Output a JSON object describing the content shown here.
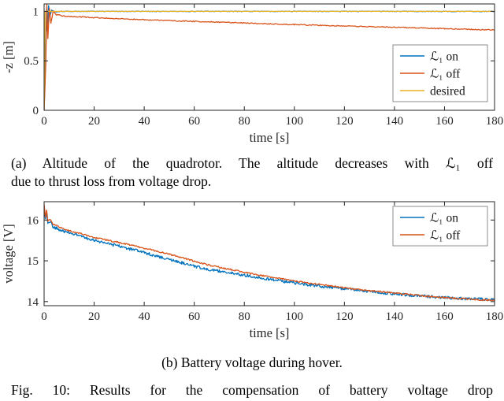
{
  "figure": {
    "caption_a_line1": "(a) Altitude of the quadrotor. The altitude decreases with ℒ₁ off",
    "caption_a_line2": "due to thrust loss from voltage drop.",
    "caption_b": "(b) Battery voltage during hover.",
    "fig_caption": "Fig. 10: Results for the compensation of battery voltage drop"
  },
  "chart_data": [
    {
      "type": "line",
      "title": "",
      "xlabel": "time [s]",
      "ylabel": "-z [m]",
      "xlim": [
        0,
        180
      ],
      "ylim": [
        0,
        1.075
      ],
      "xticks": [
        0,
        20,
        40,
        60,
        80,
        100,
        120,
        140,
        160,
        180
      ],
      "yticks": [
        0,
        0.5,
        1
      ],
      "grid": false,
      "legend_position": "bottom-right-inside",
      "series": [
        {
          "name": "ℒ₁ on",
          "color": "#0072BD",
          "noise": 0.003,
          "points": [
            [
              0,
              0
            ],
            [
              0.6,
              0.52
            ],
            [
              1.0,
              1.03
            ],
            [
              1.35,
              0.8
            ],
            [
              1.8,
              1.06
            ],
            [
              2.3,
              0.95
            ],
            [
              3,
              1.01
            ],
            [
              4.5,
              0.995
            ],
            [
              7,
              1.0
            ],
            [
              180,
              1.0
            ]
          ]
        },
        {
          "name": "ℒ₁ off",
          "color": "#D95319",
          "noise": 0.005,
          "points": [
            [
              0,
              0
            ],
            [
              0.7,
              0.48
            ],
            [
              1.1,
              1.07
            ],
            [
              1.5,
              0.72
            ],
            [
              2.1,
              1.03
            ],
            [
              2.7,
              0.88
            ],
            [
              3.6,
              1.0
            ],
            [
              5,
              0.965
            ],
            [
              8,
              0.952
            ],
            [
              15,
              0.944
            ],
            [
              25,
              0.931
            ],
            [
              40,
              0.916
            ],
            [
              55,
              0.902
            ],
            [
              70,
              0.891
            ],
            [
              85,
              0.878
            ],
            [
              100,
              0.866
            ],
            [
              115,
              0.856
            ],
            [
              130,
              0.846
            ],
            [
              145,
              0.836
            ],
            [
              160,
              0.825
            ],
            [
              170,
              0.818
            ],
            [
              180,
              0.812
            ]
          ]
        },
        {
          "name": "desired",
          "color": "#EDB120",
          "noise": 0,
          "points": [
            [
              0,
              0
            ],
            [
              0.4,
              1.0
            ],
            [
              180,
              1.0
            ]
          ]
        }
      ]
    },
    {
      "type": "line",
      "title": "",
      "xlabel": "time [s]",
      "ylabel": "voltage [V]",
      "xlim": [
        0,
        180
      ],
      "ylim": [
        13.9,
        16.45
      ],
      "xticks": [
        0,
        20,
        40,
        60,
        80,
        100,
        120,
        140,
        160,
        180
      ],
      "yticks": [
        14,
        15,
        16
      ],
      "grid": false,
      "legend_position": "top-right-inside",
      "series": [
        {
          "name": "ℒ₁ on",
          "color": "#0072BD",
          "noise": 0.035,
          "points": [
            [
              0,
              16.32
            ],
            [
              0.5,
              16.0
            ],
            [
              1,
              16.18
            ],
            [
              1.5,
              15.9
            ],
            [
              2.5,
              15.98
            ],
            [
              3.5,
              15.82
            ],
            [
              5,
              15.8
            ],
            [
              7,
              15.74
            ],
            [
              10,
              15.68
            ],
            [
              15,
              15.6
            ],
            [
              20,
              15.5
            ],
            [
              25,
              15.43
            ],
            [
              30,
              15.36
            ],
            [
              35,
              15.28
            ],
            [
              40,
              15.2
            ],
            [
              45,
              15.12
            ],
            [
              50,
              15.03
            ],
            [
              55,
              14.95
            ],
            [
              60,
              14.87
            ],
            [
              65,
              14.8
            ],
            [
              70,
              14.75
            ],
            [
              75,
              14.7
            ],
            [
              80,
              14.65
            ],
            [
              85,
              14.6
            ],
            [
              90,
              14.55
            ],
            [
              95,
              14.5
            ],
            [
              100,
              14.46
            ],
            [
              105,
              14.42
            ],
            [
              110,
              14.38
            ],
            [
              115,
              14.35
            ],
            [
              120,
              14.31
            ],
            [
              125,
              14.28
            ],
            [
              130,
              14.25
            ],
            [
              135,
              14.22
            ],
            [
              140,
              14.19
            ],
            [
              145,
              14.16
            ],
            [
              150,
              14.14
            ],
            [
              155,
              14.12
            ],
            [
              160,
              14.1
            ],
            [
              165,
              14.08
            ],
            [
              170,
              14.07
            ],
            [
              175,
              14.06
            ],
            [
              180,
              14.05
            ]
          ]
        },
        {
          "name": "ℒ₁ off",
          "color": "#D95319",
          "noise": 0.018,
          "points": [
            [
              0,
              16.38
            ],
            [
              0.5,
              16.08
            ],
            [
              1,
              16.24
            ],
            [
              1.5,
              15.98
            ],
            [
              2.5,
              16.02
            ],
            [
              3.5,
              15.9
            ],
            [
              5,
              15.86
            ],
            [
              7,
              15.8
            ],
            [
              10,
              15.74
            ],
            [
              15,
              15.66
            ],
            [
              20,
              15.58
            ],
            [
              25,
              15.51
            ],
            [
              30,
              15.45
            ],
            [
              35,
              15.38
            ],
            [
              40,
              15.31
            ],
            [
              45,
              15.24
            ],
            [
              50,
              15.16
            ],
            [
              55,
              15.08
            ],
            [
              60,
              14.99
            ],
            [
              65,
              14.91
            ],
            [
              70,
              14.84
            ],
            [
              75,
              14.78
            ],
            [
              80,
              14.72
            ],
            [
              85,
              14.66
            ],
            [
              90,
              14.61
            ],
            [
              95,
              14.56
            ],
            [
              100,
              14.51
            ],
            [
              105,
              14.46
            ],
            [
              110,
              14.42
            ],
            [
              115,
              14.38
            ],
            [
              120,
              14.34
            ],
            [
              125,
              14.3
            ],
            [
              130,
              14.27
            ],
            [
              135,
              14.24
            ],
            [
              140,
              14.21
            ],
            [
              145,
              14.18
            ],
            [
              150,
              14.15
            ],
            [
              155,
              14.12
            ],
            [
              160,
              14.1
            ],
            [
              165,
              14.08
            ],
            [
              170,
              14.06
            ],
            [
              175,
              14.04
            ],
            [
              180,
              14.03
            ]
          ]
        }
      ]
    }
  ]
}
